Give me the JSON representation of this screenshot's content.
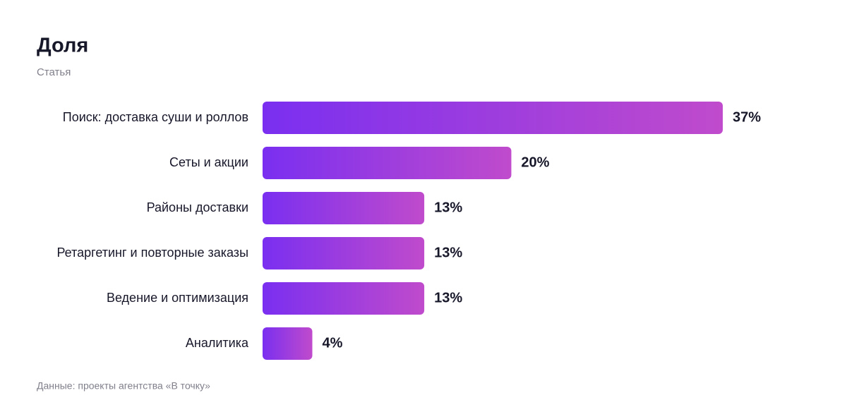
{
  "chart_data": {
    "type": "bar",
    "orientation": "horizontal",
    "title": "Доля",
    "subtitle": "Статья",
    "categories": [
      "Поиск: доставка суши и роллов",
      "Сеты и акции",
      "Районы доставки",
      "Ретаргетинг и повторные заказы",
      "Ведение и оптимизация",
      "Аналитика"
    ],
    "values": [
      37,
      20,
      13,
      13,
      13,
      4
    ],
    "value_labels": [
      "37%",
      "20%",
      "13%",
      "13%",
      "13%",
      "4%"
    ],
    "color": [
      "#7a2ff0",
      "#c04bcc"
    ],
    "source": "Данные: проекты агентства «В точку»"
  }
}
